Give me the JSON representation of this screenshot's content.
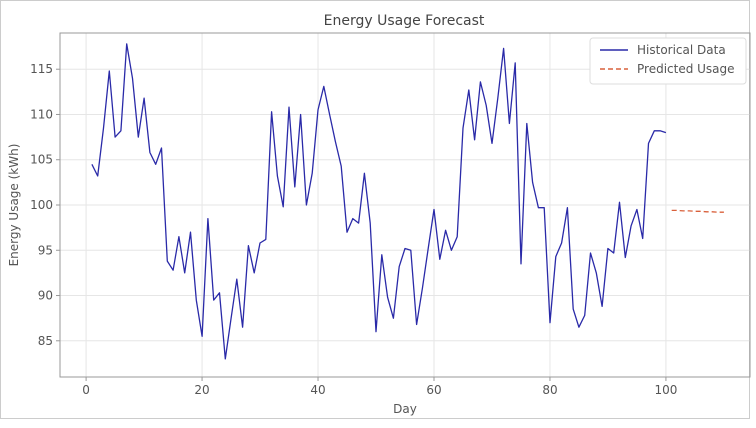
{
  "chart_data": {
    "type": "line",
    "title": "Energy Usage Forecast",
    "xlabel": "Day",
    "ylabel": "Energy Usage (kWh)",
    "xlim": [
      -4.5,
      114.5
    ],
    "ylim": [
      81,
      119
    ],
    "x_ticks": [
      0,
      20,
      40,
      60,
      80,
      100
    ],
    "y_ticks": [
      85,
      90,
      95,
      100,
      105,
      110,
      115
    ],
    "grid": true,
    "legend_position": "top-right",
    "series": [
      {
        "name": "Historical Data",
        "style": "solid",
        "color": "#2a2aa8",
        "x": [
          1,
          2,
          3,
          4,
          5,
          6,
          7,
          8,
          9,
          10,
          11,
          12,
          13,
          14,
          15,
          16,
          17,
          18,
          19,
          20,
          21,
          22,
          23,
          24,
          25,
          26,
          27,
          28,
          29,
          30,
          31,
          32,
          33,
          34,
          35,
          36,
          37,
          38,
          39,
          40,
          41,
          42,
          43,
          44,
          45,
          46,
          47,
          48,
          49,
          50,
          51,
          52,
          53,
          54,
          55,
          56,
          57,
          58,
          59,
          60,
          61,
          62,
          63,
          64,
          65,
          66,
          67,
          68,
          69,
          70,
          71,
          72,
          73,
          74,
          75,
          76,
          77,
          78,
          79,
          80,
          81,
          82,
          83,
          84,
          85,
          86,
          87,
          88,
          89,
          90,
          91,
          92,
          93,
          94,
          95,
          96,
          97,
          98,
          99,
          100
        ],
        "values": [
          104.5,
          103.2,
          108.5,
          114.8,
          107.5,
          108.2,
          117.8,
          114.0,
          107.5,
          111.8,
          105.8,
          104.5,
          106.3,
          93.8,
          92.8,
          96.5,
          92.5,
          97.0,
          89.5,
          85.5,
          98.5,
          89.5,
          90.3,
          83.0,
          87.5,
          91.8,
          86.5,
          95.5,
          92.5,
          95.8,
          96.2,
          110.3,
          103.2,
          99.8,
          110.8,
          102.0,
          110.0,
          100.0,
          103.5,
          110.5,
          113.1,
          110.0,
          107.0,
          104.3,
          97.0,
          98.5,
          98.0,
          103.5,
          98.0,
          86.0,
          94.5,
          89.8,
          87.5,
          93.2,
          95.2,
          95.0,
          86.8,
          90.8,
          95.2,
          99.5,
          94.0,
          97.2,
          95.0,
          96.5,
          108.5,
          112.7,
          107.2,
          113.6,
          111.0,
          106.8,
          111.8,
          117.3,
          109.0,
          115.7,
          93.5,
          109.0,
          102.5,
          99.7,
          99.7,
          87.0,
          94.3,
          95.8,
          99.7,
          88.5,
          86.5,
          87.8,
          94.7,
          92.5,
          88.8,
          95.2,
          94.7,
          100.3,
          94.2,
          97.7,
          99.5,
          96.3,
          106.8,
          108.2,
          108.2,
          108.0
        ]
      },
      {
        "name": "Predicted Usage",
        "style": "dashed",
        "color": "#d9603b",
        "x": [
          101,
          102,
          103,
          104,
          105,
          106,
          107,
          108,
          109,
          110
        ],
        "values": [
          99.4,
          99.4,
          99.35,
          99.35,
          99.3,
          99.3,
          99.25,
          99.25,
          99.2,
          99.2
        ]
      }
    ]
  }
}
